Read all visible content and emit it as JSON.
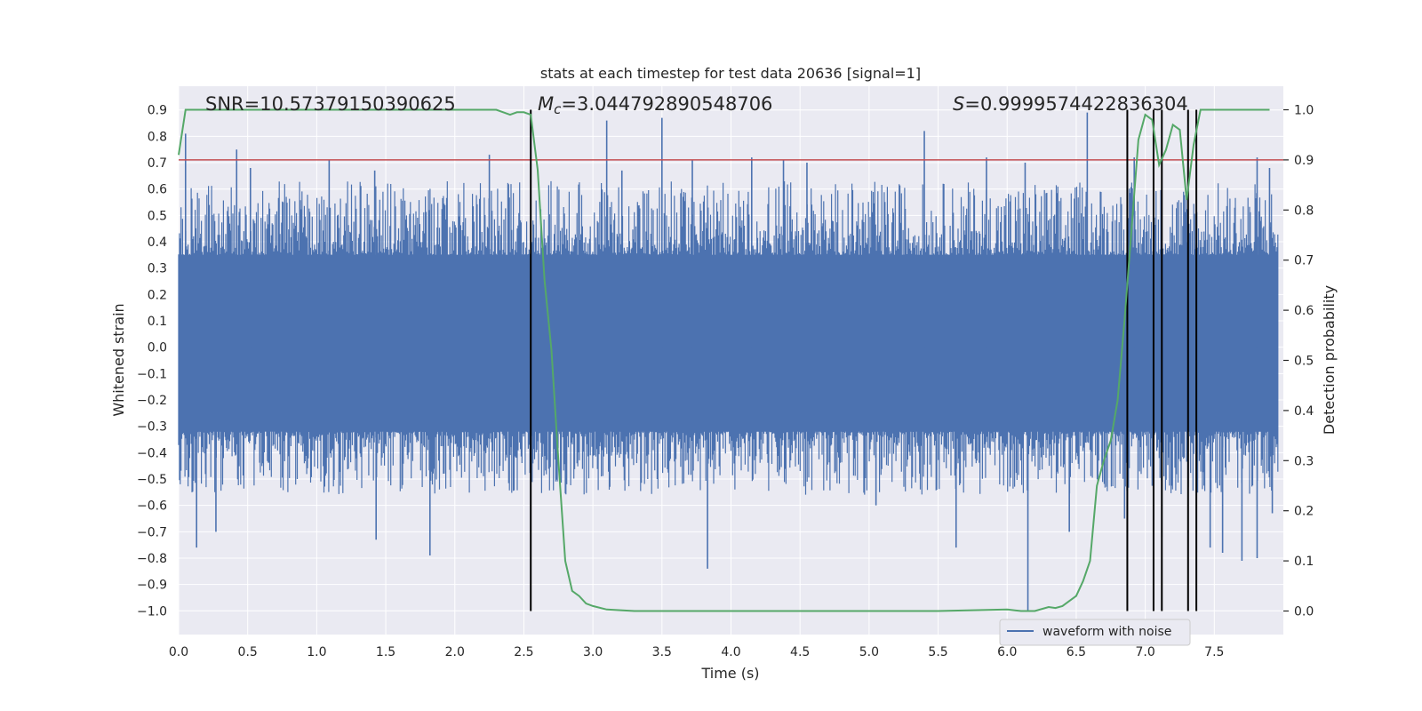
{
  "chart_data": {
    "type": "line",
    "title": "stats at each timestep for test data 20636 [signal=1]",
    "xlabel": "Time (s)",
    "ylabel": "Whitened strain",
    "y2label": "Detection probability",
    "xlim": [
      0.0,
      8.0
    ],
    "ylim": [
      -1.09,
      0.99
    ],
    "y2lim": [
      -0.047,
      1.047
    ],
    "x_ticks": [
      0.0,
      0.5,
      1.0,
      1.5,
      2.0,
      2.5,
      3.0,
      3.5,
      4.0,
      4.5,
      5.0,
      5.5,
      6.0,
      6.5,
      7.0,
      7.5
    ],
    "x_tick_labels": [
      "0.0",
      "0.5",
      "1.0",
      "1.5",
      "2.0",
      "2.5",
      "3.0",
      "3.5",
      "4.0",
      "4.5",
      "5.0",
      "5.5",
      "6.0",
      "6.5",
      "7.0",
      "7.5"
    ],
    "y_ticks": [
      0.9,
      0.8,
      0.7,
      0.6,
      0.5,
      0.4,
      0.3,
      0.2,
      0.1,
      0.0,
      -0.1,
      -0.2,
      -0.3,
      -0.4,
      -0.5,
      -0.6,
      -0.7,
      -0.8,
      -0.9,
      -1.0
    ],
    "y_tick_labels": [
      "0.9",
      "0.8",
      "0.7",
      "0.6",
      "0.5",
      "0.4",
      "0.3",
      "0.2",
      "0.1",
      "0.0",
      "−0.1",
      "−0.2",
      "−0.3",
      "−0.4",
      "−0.5",
      "−0.6",
      "−0.7",
      "−0.8",
      "−0.9",
      "−1.0"
    ],
    "y2_ticks": [
      1.0,
      0.9,
      0.8,
      0.7,
      0.6,
      0.5,
      0.4,
      0.3,
      0.2,
      0.1,
      0.0
    ],
    "y2_tick_labels": [
      "1.0",
      "0.9",
      "0.8",
      "0.7",
      "0.6",
      "0.5",
      "0.4",
      "0.3",
      "0.2",
      "0.1",
      "0.0"
    ],
    "annotations": {
      "snr": "SNR=10.57379150390625",
      "mc_symbol": "M",
      "mc_sub": "c",
      "mc_value": "=3.044792890548706",
      "s_symbol": "S",
      "s_value": "=0.9999574422836304"
    },
    "threshold": {
      "axis": "y2",
      "value": 0.9,
      "color": "#c44e52"
    },
    "vertical_markers_x": [
      2.55,
      6.87,
      7.06,
      7.12,
      7.31,
      7.37
    ],
    "waveform": {
      "name": "waveform with noise",
      "color": "#4c72b0",
      "core_min": -0.32,
      "core_max": 0.35,
      "spikes": [
        {
          "x": 0.05,
          "y": 0.81
        },
        {
          "x": 0.13,
          "y": -0.76
        },
        {
          "x": 0.27,
          "y": -0.7
        },
        {
          "x": 0.42,
          "y": 0.75
        },
        {
          "x": 0.52,
          "y": 0.68
        },
        {
          "x": 1.09,
          "y": 0.71
        },
        {
          "x": 1.42,
          "y": 0.67
        },
        {
          "x": 1.43,
          "y": -0.73
        },
        {
          "x": 1.82,
          "y": -0.79
        },
        {
          "x": 2.25,
          "y": 0.73
        },
        {
          "x": 2.55,
          "y": -0.7
        },
        {
          "x": 3.1,
          "y": 0.86
        },
        {
          "x": 3.21,
          "y": 0.67
        },
        {
          "x": 3.5,
          "y": 0.87
        },
        {
          "x": 3.72,
          "y": 0.71
        },
        {
          "x": 3.83,
          "y": -0.84
        },
        {
          "x": 4.15,
          "y": 0.72
        },
        {
          "x": 4.38,
          "y": 0.71
        },
        {
          "x": 4.55,
          "y": 0.7
        },
        {
          "x": 5.05,
          "y": -0.6
        },
        {
          "x": 5.4,
          "y": 0.82
        },
        {
          "x": 5.63,
          "y": -0.76
        },
        {
          "x": 5.85,
          "y": 0.72
        },
        {
          "x": 6.13,
          "y": 0.7
        },
        {
          "x": 6.15,
          "y": -1.0
        },
        {
          "x": 6.45,
          "y": -0.7
        },
        {
          "x": 6.58,
          "y": 0.89
        },
        {
          "x": 6.85,
          "y": -0.65
        },
        {
          "x": 6.92,
          "y": 0.72
        },
        {
          "x": 7.12,
          "y": -0.72
        },
        {
          "x": 7.47,
          "y": -0.76
        },
        {
          "x": 7.56,
          "y": -0.78
        },
        {
          "x": 7.7,
          "y": -0.81
        },
        {
          "x": 7.81,
          "y": -0.8
        },
        {
          "x": 7.81,
          "y": 0.72
        },
        {
          "x": 7.9,
          "y": 0.68
        },
        {
          "x": 7.92,
          "y": -0.63
        }
      ]
    },
    "probability": {
      "color": "#55a868",
      "x": [
        0.0,
        0.05,
        0.1,
        0.5,
        1.0,
        1.5,
        2.0,
        2.3,
        2.4,
        2.45,
        2.5,
        2.55,
        2.6,
        2.65,
        2.7,
        2.75,
        2.8,
        2.85,
        2.9,
        2.95,
        3.0,
        3.1,
        3.3,
        3.5,
        4.0,
        4.5,
        5.0,
        5.5,
        6.0,
        6.1,
        6.2,
        6.3,
        6.35,
        6.4,
        6.45,
        6.5,
        6.55,
        6.6,
        6.65,
        6.7,
        6.75,
        6.8,
        6.85,
        6.9,
        6.95,
        7.0,
        7.05,
        7.1,
        7.15,
        7.2,
        7.25,
        7.3,
        7.35,
        7.4,
        7.45,
        7.5,
        7.6,
        7.7,
        7.8,
        7.9
      ],
      "y": [
        0.91,
        1.0,
        1.0,
        1.0,
        1.0,
        1.0,
        1.0,
        1.0,
        0.99,
        0.995,
        0.995,
        0.99,
        0.88,
        0.66,
        0.52,
        0.3,
        0.1,
        0.04,
        0.03,
        0.015,
        0.01,
        0.003,
        0.0,
        0.0,
        0.0,
        0.0,
        0.0,
        0.0,
        0.003,
        0.0,
        0.0,
        0.008,
        0.006,
        0.01,
        0.02,
        0.03,
        0.06,
        0.1,
        0.25,
        0.3,
        0.34,
        0.42,
        0.58,
        0.76,
        0.94,
        0.99,
        0.98,
        0.89,
        0.92,
        0.97,
        0.96,
        0.82,
        0.93,
        1.0,
        1.0,
        1.0,
        1.0,
        1.0,
        1.0,
        1.0
      ]
    },
    "legend": {
      "label": "waveform with noise",
      "location": "lower-right"
    },
    "colors": {
      "background": "#eaeaf2",
      "grid": "#ffffff",
      "waveform": "#4c72b0",
      "probability": "#55a868",
      "threshold": "#c44e52",
      "markers": "#000000"
    }
  }
}
